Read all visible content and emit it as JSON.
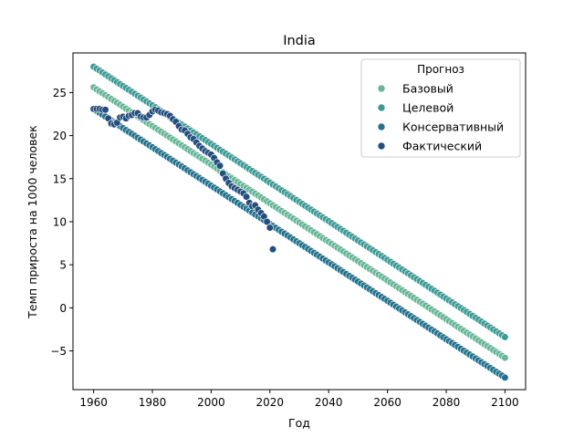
{
  "chart_data": {
    "type": "scatter",
    "title": "India",
    "xlabel": "Год",
    "ylabel": "Темп прироста на 1000 человек",
    "xlim": [
      1952.98,
      2107.02
    ],
    "ylim": [
      -9.5,
      29.6
    ],
    "xticks": [
      1960,
      1980,
      2000,
      2020,
      2040,
      2060,
      2080,
      2100
    ],
    "yticks": [
      -5,
      0,
      5,
      10,
      15,
      20,
      25
    ],
    "grid": false,
    "legend": {
      "title": "Прогноз",
      "position": "top-right"
    },
    "series": [
      {
        "name": "Базовый",
        "color": "#67b697",
        "start_year": 1960,
        "end_year": 2100,
        "start_value": 25.6,
        "end_value": -5.8
      },
      {
        "name": "Целевой",
        "color": "#3e9a95",
        "start_year": 1960,
        "end_year": 2100,
        "start_value": 28.0,
        "end_value": -3.4
      },
      {
        "name": "Консервативный",
        "color": "#23718c",
        "start_year": 1960,
        "end_year": 2100,
        "start_value": 23.1,
        "end_value": -8.1
      },
      {
        "name": "Фактический",
        "color": "#244e7f",
        "x": [
          1960,
          1961,
          1962,
          1963,
          1964,
          1965,
          1966,
          1967,
          1968,
          1969,
          1970,
          1971,
          1972,
          1973,
          1974,
          1975,
          1976,
          1977,
          1978,
          1979,
          1980,
          1981,
          1982,
          1983,
          1984,
          1985,
          1986,
          1987,
          1988,
          1989,
          1990,
          1991,
          1992,
          1993,
          1994,
          1995,
          1996,
          1997,
          1998,
          1999,
          2000,
          2001,
          2002,
          2003,
          2004,
          2005,
          2006,
          2007,
          2008,
          2009,
          2010,
          2011,
          2012,
          2013,
          2014,
          2015,
          2016,
          2017,
          2018,
          2019,
          2020,
          2021
        ],
        "y": [
          23.1,
          23.1,
          23.1,
          23.0,
          23.0,
          22.0,
          21.4,
          21.3,
          21.5,
          22.1,
          22.2,
          22.0,
          22.3,
          22.4,
          22.6,
          22.6,
          22.2,
          22.1,
          22.1,
          22.4,
          22.8,
          23.0,
          22.9,
          22.7,
          22.6,
          22.5,
          22.3,
          21.9,
          21.6,
          21.1,
          20.7,
          20.6,
          20.2,
          19.8,
          19.6,
          19.2,
          18.8,
          18.5,
          18.2,
          18.0,
          17.8,
          17.4,
          16.9,
          16.5,
          15.6,
          15.0,
          14.5,
          14.1,
          13.9,
          13.7,
          13.5,
          13.3,
          12.9,
          12.2,
          11.8,
          11.9,
          11.4,
          11.0,
          10.6,
          10.0,
          9.3,
          6.8
        ]
      }
    ]
  }
}
